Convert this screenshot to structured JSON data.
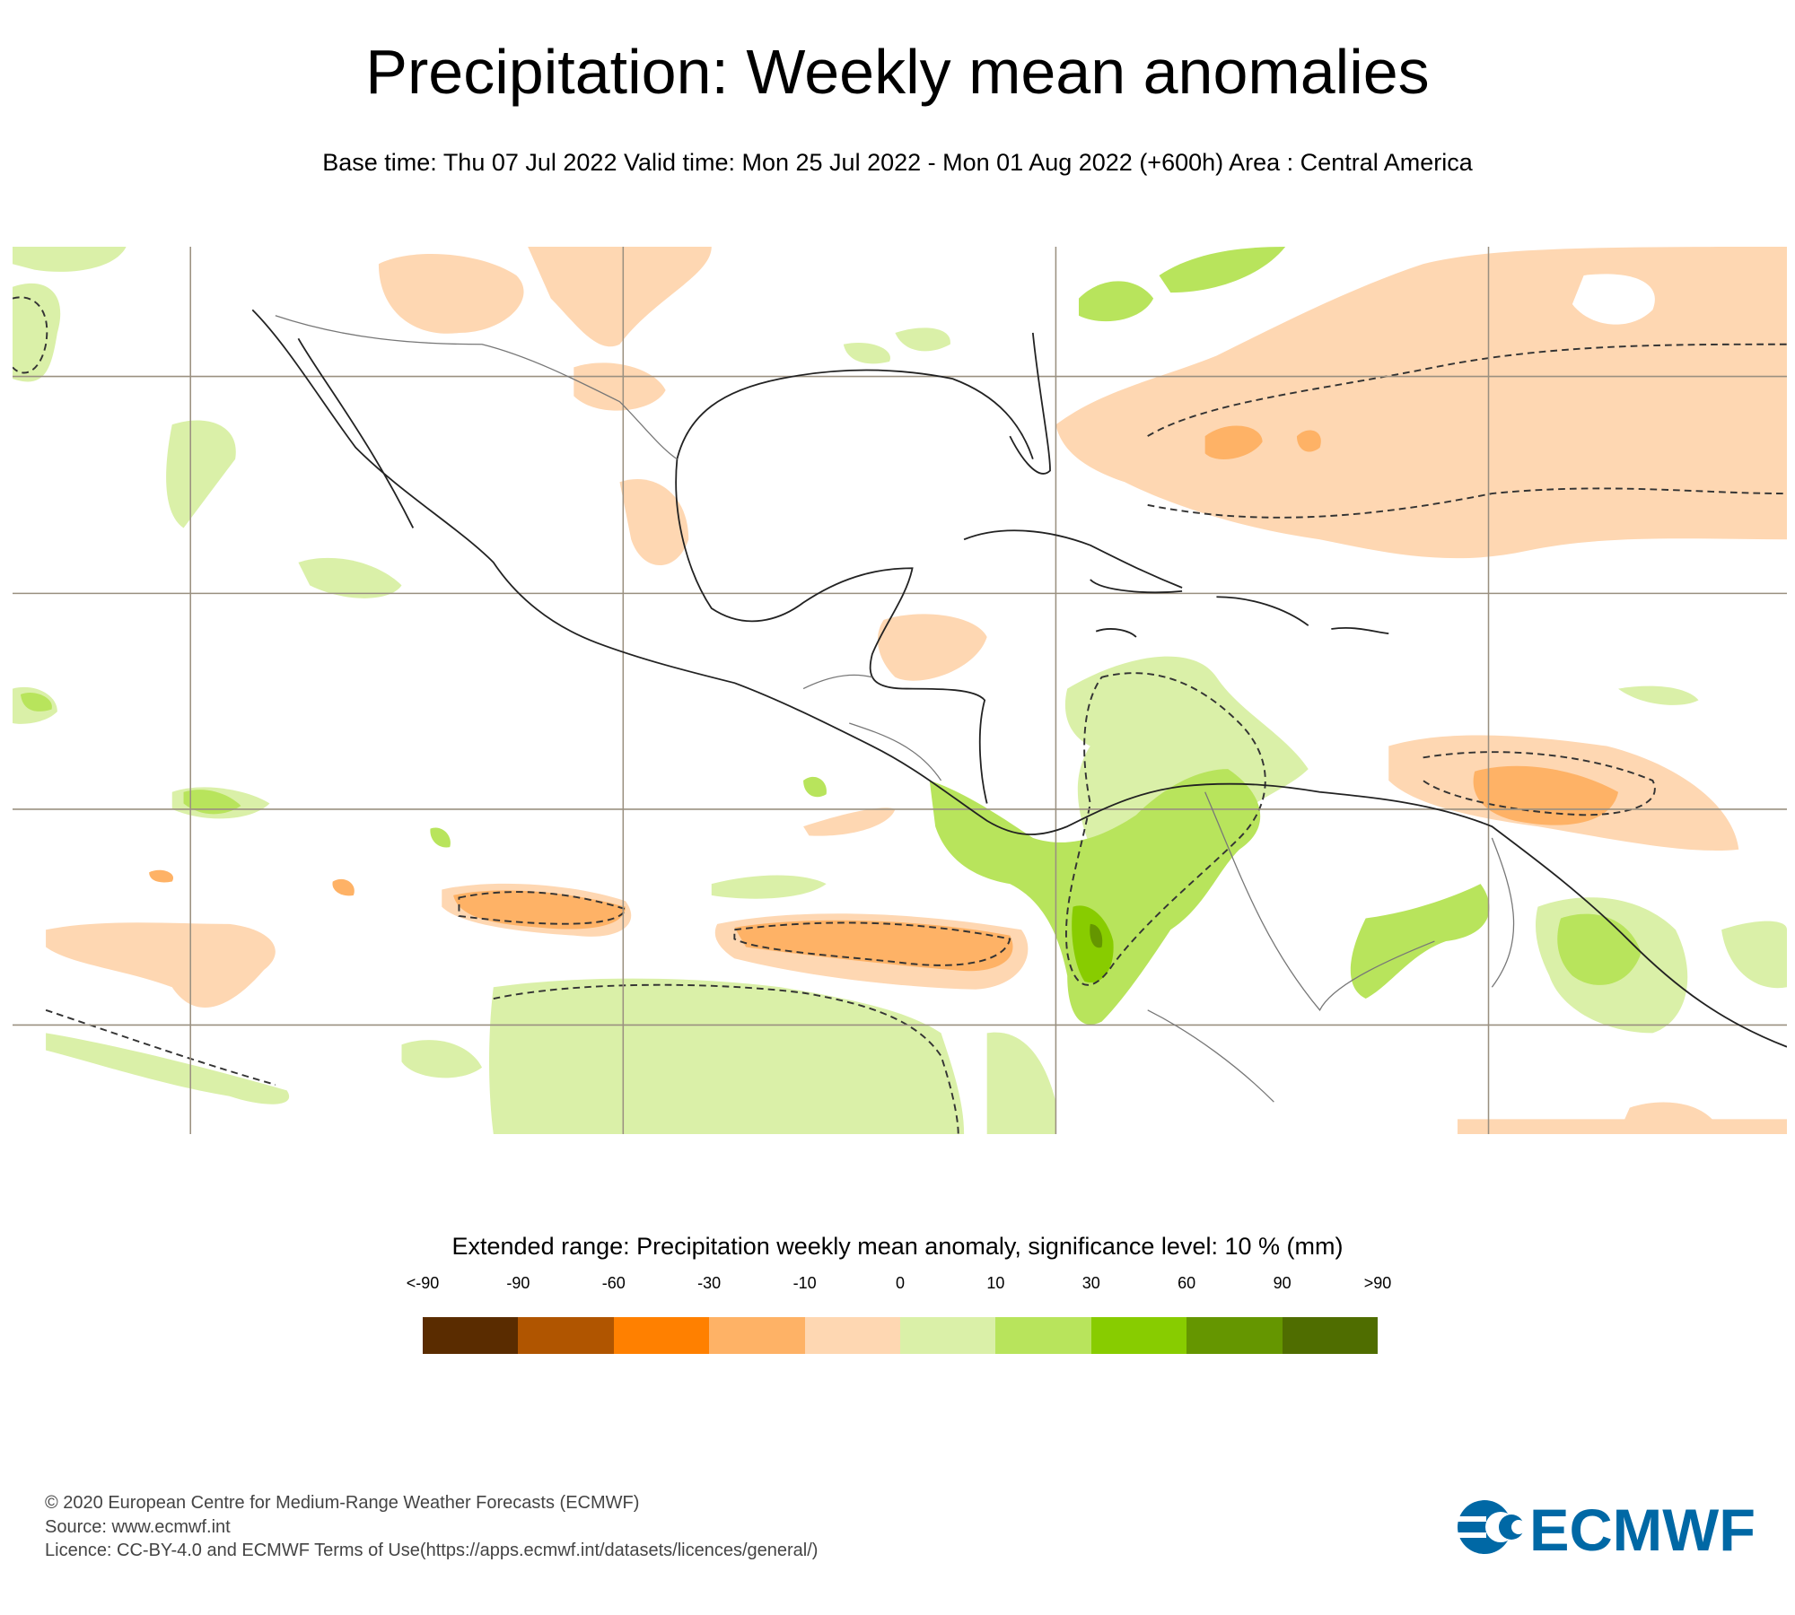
{
  "header": {
    "title": "Precipitation: Weekly mean anomalies",
    "subtitle": "Base time: Thu 07 Jul 2022 Valid time: Mon 25 Jul 2022 - Mon 01 Aug 2022 (+600h) Area : Central America"
  },
  "legend": {
    "title": "Extended range: Precipitation weekly mean anomaly, significance level: 10 % (mm)",
    "labels": [
      "<-90",
      "-90",
      "-60",
      "-30",
      "-10",
      "0",
      "10",
      "30",
      "60",
      "90",
      ">90"
    ],
    "colors": [
      "#5a2c00",
      "#b05500",
      "#ff8000",
      "#feb266",
      "#fed7b2",
      "#daf0a8",
      "#b8e45c",
      "#88cc00",
      "#659600",
      "#4f6d00"
    ]
  },
  "footer": {
    "copyright": "© 2020 European Centre for Medium-Range Weather Forecasts (ECMWF)",
    "source": "Source: www.ecmwf.int",
    "licence": "Licence: CC-BY-4.0 and ECMWF Terms of Use(https://apps.ecmwf.int/datasets/licences/general/)"
  },
  "logo": {
    "text": "ECMWF",
    "color": "#0068a5"
  }
}
